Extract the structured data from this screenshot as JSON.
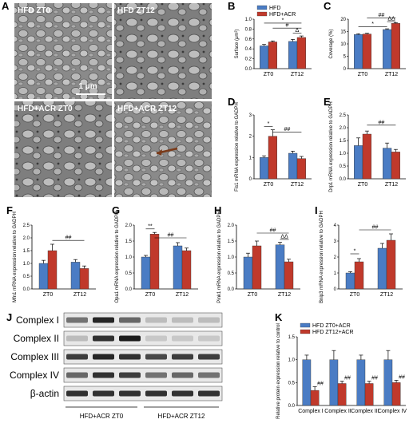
{
  "colors": {
    "hfd": "#4a7cc4",
    "acr": "#c0392b",
    "em_bg": "#7a7a7a"
  },
  "panel_a": {
    "label": "A",
    "images": [
      {
        "title": "HFD ZT0"
      },
      {
        "title": "HFD ZT12"
      },
      {
        "title": "HFD+ACR ZT0"
      },
      {
        "title": "HFD+ACR ZT12"
      }
    ],
    "scale_bar": "1 μm"
  },
  "chart_data": [
    {
      "panel": "B",
      "type": "bar",
      "ylabel": "Surface (μm²)",
      "ylim": [
        0,
        1.0
      ],
      "yticks": [
        "0.0",
        "0.2",
        "0.4",
        "0.6",
        "0.8",
        "1.0"
      ],
      "categories": [
        "ZT0",
        "ZT12"
      ],
      "legend": [
        "HFD",
        "HFD+ACR"
      ],
      "series": [
        {
          "name": "HFD",
          "values": [
            0.46,
            0.55
          ],
          "err": [
            0.03,
            0.04
          ]
        },
        {
          "name": "HFD+ACR",
          "values": [
            0.54,
            0.63
          ],
          "err": [
            0.02,
            0.03
          ]
        }
      ],
      "sig": [
        {
          "text": "*",
          "from": [
            0,
            0
          ],
          "to": [
            1,
            1
          ],
          "y": 0.92
        },
        {
          "text": "#",
          "from": [
            0,
            1
          ],
          "to": [
            1,
            1
          ],
          "y": 0.82
        },
        {
          "text": "Δ",
          "from": [
            1,
            0
          ],
          "to": [
            1,
            1
          ],
          "y": 0.72
        }
      ]
    },
    {
      "panel": "C",
      "type": "bar",
      "ylabel": "Coverage (%)",
      "ylim": [
        0,
        20
      ],
      "yticks": [
        "0",
        "5",
        "10",
        "15",
        "20"
      ],
      "categories": [
        "ZT0",
        "ZT12"
      ],
      "series": [
        {
          "name": "HFD",
          "values": [
            13.8,
            15.8
          ],
          "err": [
            0.3,
            0.3
          ]
        },
        {
          "name": "HFD+ACR",
          "values": [
            14.0,
            18.3
          ],
          "err": [
            0.3,
            0.3
          ]
        }
      ],
      "sig": [
        {
          "text": "##",
          "from": [
            0,
            1
          ],
          "to": [
            1,
            1
          ],
          "y": 20.5
        },
        {
          "text": "*",
          "from": [
            0,
            0
          ],
          "to": [
            1,
            0
          ],
          "y": 17.0
        },
        {
          "text": "ΔΔ",
          "from": [
            1,
            0
          ],
          "to": [
            1,
            1
          ],
          "y": 19.0
        }
      ]
    },
    {
      "panel": "D",
      "type": "bar",
      "ylabel": "Fis1 mRNA expression relative to GADPH",
      "ylim": [
        0,
        3
      ],
      "yticks": [
        "0",
        "1",
        "2",
        "3"
      ],
      "categories": [
        "ZT0",
        "ZT12"
      ],
      "series": [
        {
          "name": "HFD",
          "values": [
            1.0,
            1.2
          ],
          "err": [
            0.08,
            0.1
          ]
        },
        {
          "name": "HFD+ACR",
          "values": [
            2.0,
            0.95
          ],
          "err": [
            0.3,
            0.1
          ]
        }
      ],
      "sig": [
        {
          "text": "*",
          "from": [
            0,
            0
          ],
          "to": [
            0,
            1
          ],
          "y": 2.45
        },
        {
          "text": "##",
          "from": [
            0,
            1
          ],
          "to": [
            1,
            1
          ],
          "y": 2.2
        }
      ]
    },
    {
      "panel": "E",
      "type": "bar",
      "ylabel": "Drp1 mRNA expression relative to GADPH",
      "ylim": [
        0,
        2.5
      ],
      "yticks": [
        "0.0",
        "0.5",
        "1.0",
        "1.5",
        "2.0",
        "2.5"
      ],
      "categories": [
        "ZT0",
        "ZT12"
      ],
      "series": [
        {
          "name": "HFD",
          "values": [
            1.3,
            1.2
          ],
          "err": [
            0.3,
            0.2
          ]
        },
        {
          "name": "HFD+ACR",
          "values": [
            1.75,
            1.05
          ],
          "err": [
            0.12,
            0.1
          ]
        }
      ],
      "sig": [
        {
          "text": "##",
          "from": [
            0,
            1
          ],
          "to": [
            1,
            1
          ],
          "y": 2.1
        }
      ]
    },
    {
      "panel": "F",
      "type": "bar",
      "ylabel": "Mfn1 mRNA expression relative to GADPH",
      "ylim": [
        0,
        2.5
      ],
      "yticks": [
        "0.0",
        "0.5",
        "1.0",
        "1.5",
        "2.0",
        "2.5"
      ],
      "categories": [
        "ZT0",
        "ZT12"
      ],
      "series": [
        {
          "name": "HFD",
          "values": [
            1.0,
            1.05
          ],
          "err": [
            0.12,
            0.1
          ]
        },
        {
          "name": "HFD+ACR",
          "values": [
            1.5,
            0.8
          ],
          "err": [
            0.25,
            0.1
          ]
        }
      ],
      "sig": [
        {
          "text": "##",
          "from": [
            0,
            1
          ],
          "to": [
            1,
            1
          ],
          "y": 1.9
        }
      ]
    },
    {
      "panel": "G",
      "type": "bar",
      "ylabel": "Opa1 mRNA expression relative to GADPH",
      "ylim": [
        0,
        2.0
      ],
      "yticks": [
        "0.0",
        "0.5",
        "1.0",
        "1.5",
        "2.0"
      ],
      "categories": [
        "ZT0",
        "ZT12"
      ],
      "series": [
        {
          "name": "HFD",
          "values": [
            1.0,
            1.35
          ],
          "err": [
            0.05,
            0.1
          ]
        },
        {
          "name": "HFD+ACR",
          "values": [
            1.72,
            1.2
          ],
          "err": [
            0.05,
            0.08
          ]
        }
      ],
      "sig": [
        {
          "text": "**",
          "from": [
            0,
            0
          ],
          "to": [
            0,
            1
          ],
          "y": 1.88
        },
        {
          "text": "##",
          "from": [
            0,
            1
          ],
          "to": [
            1,
            1
          ],
          "y": 1.6
        }
      ]
    },
    {
      "panel": "H",
      "type": "bar",
      "ylabel": "Pink1 mRNA expression relative to GADPH",
      "ylim": [
        0,
        2.0
      ],
      "yticks": [
        "0.0",
        "0.5",
        "1.0",
        "1.5",
        "2.0"
      ],
      "categories": [
        "ZT0",
        "ZT12"
      ],
      "series": [
        {
          "name": "HFD",
          "values": [
            1.0,
            1.38
          ],
          "err": [
            0.12,
            0.08
          ]
        },
        {
          "name": "HFD+ACR",
          "values": [
            1.35,
            0.85
          ],
          "err": [
            0.15,
            0.08
          ]
        }
      ],
      "sig": [
        {
          "text": "##",
          "from": [
            0,
            1
          ],
          "to": [
            1,
            1
          ],
          "y": 1.75
        },
        {
          "text": "ΔΔ",
          "from": [
            1,
            0
          ],
          "to": [
            1,
            1
          ],
          "y": 1.55
        }
      ]
    },
    {
      "panel": "I",
      "type": "bar",
      "ylabel": "Bnip3 mRNA expression relative to GADPH",
      "ylim": [
        0,
        4
      ],
      "yticks": [
        "0",
        "1",
        "2",
        "3",
        "4"
      ],
      "categories": [
        "ZT0",
        "ZT12"
      ],
      "series": [
        {
          "name": "HFD",
          "values": [
            1.0,
            2.55
          ],
          "err": [
            0.08,
            0.3
          ]
        },
        {
          "name": "HFD+ACR",
          "values": [
            1.7,
            3.05
          ],
          "err": [
            0.2,
            0.4
          ]
        }
      ],
      "sig": [
        {
          "text": "*",
          "from": [
            0,
            0
          ],
          "to": [
            0,
            1
          ],
          "y": 2.2
        },
        {
          "text": "##",
          "from": [
            0,
            1
          ],
          "to": [
            1,
            1
          ],
          "y": 3.7
        }
      ]
    },
    {
      "panel": "K",
      "type": "bar",
      "ylabel": "Relative protein expression relative to control",
      "ylim": [
        0,
        1.5
      ],
      "yticks": [
        "0.0",
        "0.5",
        "1.0",
        "1.5"
      ],
      "categories": [
        "Complex I",
        "Complex II",
        "Complex III",
        "Complex IV"
      ],
      "legend": [
        "HFD ZT0+ACR",
        "HFD ZT12+ACR"
      ],
      "series": [
        {
          "name": "HFD ZT0+ACR",
          "values": [
            1.0,
            1.0,
            1.0,
            1.0
          ],
          "err": [
            0.1,
            0.2,
            0.1,
            0.2
          ]
        },
        {
          "name": "HFD ZT12+ACR",
          "values": [
            0.33,
            0.48,
            0.48,
            0.5
          ],
          "err": [
            0.08,
            0.05,
            0.05,
            0.05
          ]
        }
      ],
      "bar_marks": [
        "##",
        "##",
        "##",
        "##"
      ]
    }
  ],
  "panel_j": {
    "label": "J",
    "rows": [
      "Complex I",
      "Complex II",
      "Complex III",
      "Complex IV",
      "β-actin"
    ],
    "groups": [
      "HFD+ACR ZT0",
      "HFD+ACR ZT12"
    ]
  }
}
